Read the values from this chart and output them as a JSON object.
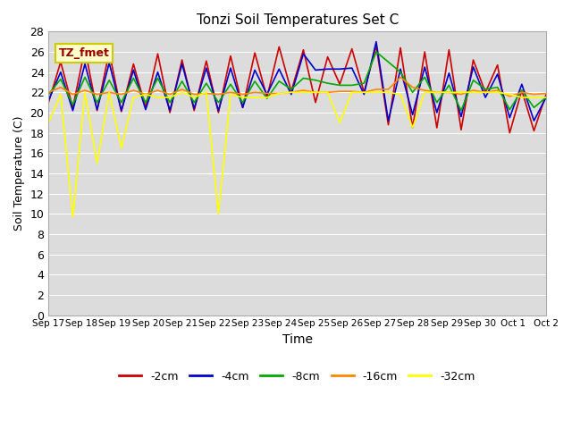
{
  "title": "Tonzi Soil Temperatures Set C",
  "xlabel": "Time",
  "ylabel": "Soil Temperature (C)",
  "legend_label": "TZ_fmet",
  "ylim": [
    0,
    28
  ],
  "yticks": [
    0,
    2,
    4,
    6,
    8,
    10,
    12,
    14,
    16,
    18,
    20,
    22,
    24,
    26,
    28
  ],
  "xtick_labels": [
    "Sep 17",
    "Sep 18",
    "Sep 19",
    "Sep 20",
    "Sep 21",
    "Sep 22",
    "Sep 23",
    "Sep 24",
    "Sep 25",
    "Sep 26",
    "Sep 27",
    "Sep 28",
    "Sep 29",
    "Sep 30",
    "Oct 1",
    "Oct 2"
  ],
  "n_days": 16,
  "series": {
    "-2cm": {
      "color": "#cc0000",
      "data": [
        21.0,
        25.0,
        20.5,
        26.3,
        20.2,
        26.0,
        20.1,
        24.8,
        20.5,
        25.8,
        20.0,
        25.2,
        20.2,
        25.1,
        20.0,
        25.6,
        20.5,
        25.9,
        21.5,
        26.5,
        22.1,
        26.2,
        21.0,
        25.5,
        22.8,
        26.3,
        22.0,
        26.6,
        18.8,
        26.4,
        18.5,
        26.0,
        18.5,
        26.2,
        18.3,
        25.2,
        22.0,
        24.7,
        18.0,
        22.2,
        18.2,
        21.8
      ]
    },
    "-4cm": {
      "color": "#0000cc",
      "data": [
        21.2,
        24.0,
        20.2,
        24.8,
        20.3,
        24.9,
        20.2,
        24.2,
        20.3,
        24.0,
        20.2,
        24.8,
        20.4,
        24.4,
        20.2,
        24.4,
        20.5,
        24.2,
        21.8,
        24.3,
        21.8,
        25.8,
        24.2,
        24.3,
        24.3,
        24.4,
        21.8,
        27.0,
        19.2,
        24.3,
        19.8,
        24.5,
        20.0,
        23.9,
        19.6,
        24.5,
        21.5,
        23.8,
        19.5,
        22.8,
        19.2,
        21.5
      ]
    },
    "-8cm": {
      "color": "#00aa00",
      "data": [
        21.8,
        23.3,
        20.8,
        23.5,
        21.0,
        23.2,
        21.0,
        23.4,
        21.0,
        23.4,
        21.0,
        23.1,
        21.0,
        22.9,
        21.0,
        22.8,
        21.0,
        23.1,
        21.4,
        23.1,
        22.3,
        23.4,
        23.2,
        22.9,
        22.7,
        22.7,
        22.9,
        26.0,
        25.0,
        24.0,
        22.0,
        23.5,
        21.0,
        22.7,
        20.2,
        23.2,
        22.3,
        22.5,
        20.3,
        22.2,
        20.5,
        21.5
      ]
    },
    "-16cm": {
      "color": "#ff8800",
      "data": [
        22.0,
        22.5,
        21.8,
        22.2,
        21.8,
        22.0,
        21.8,
        22.2,
        21.8,
        22.2,
        21.8,
        22.3,
        21.8,
        21.9,
        21.8,
        22.0,
        21.8,
        22.0,
        21.9,
        21.9,
        22.0,
        22.2,
        22.0,
        22.0,
        22.1,
        22.1,
        22.0,
        22.3,
        22.3,
        23.5,
        22.5,
        22.2,
        22.0,
        22.0,
        21.8,
        22.2,
        22.0,
        22.2,
        21.6,
        22.0,
        21.8,
        21.9
      ]
    },
    "-32cm": {
      "color": "#ffff00",
      "data": [
        19.0,
        21.8,
        9.7,
        22.0,
        15.0,
        22.0,
        16.5,
        21.5,
        21.8,
        21.5,
        21.5,
        22.0,
        21.5,
        22.0,
        10.0,
        21.8,
        21.5,
        21.5,
        21.5,
        21.9,
        22.0,
        22.0,
        22.0,
        22.0,
        19.0,
        22.0,
        22.0,
        22.0,
        22.0,
        21.8,
        18.5,
        22.0,
        22.0,
        22.0,
        22.0,
        22.0,
        22.0,
        22.0,
        21.8,
        21.5,
        21.5,
        21.5
      ]
    }
  },
  "bg_color": "#dcdcdc",
  "grid_color": "#ffffff",
  "box_facecolor": "#ffffcc",
  "box_edgecolor": "#cccc00",
  "box_text_color": "#990000",
  "spine_color": "#aaaaaa",
  "fig_facecolor": "#ffffff"
}
